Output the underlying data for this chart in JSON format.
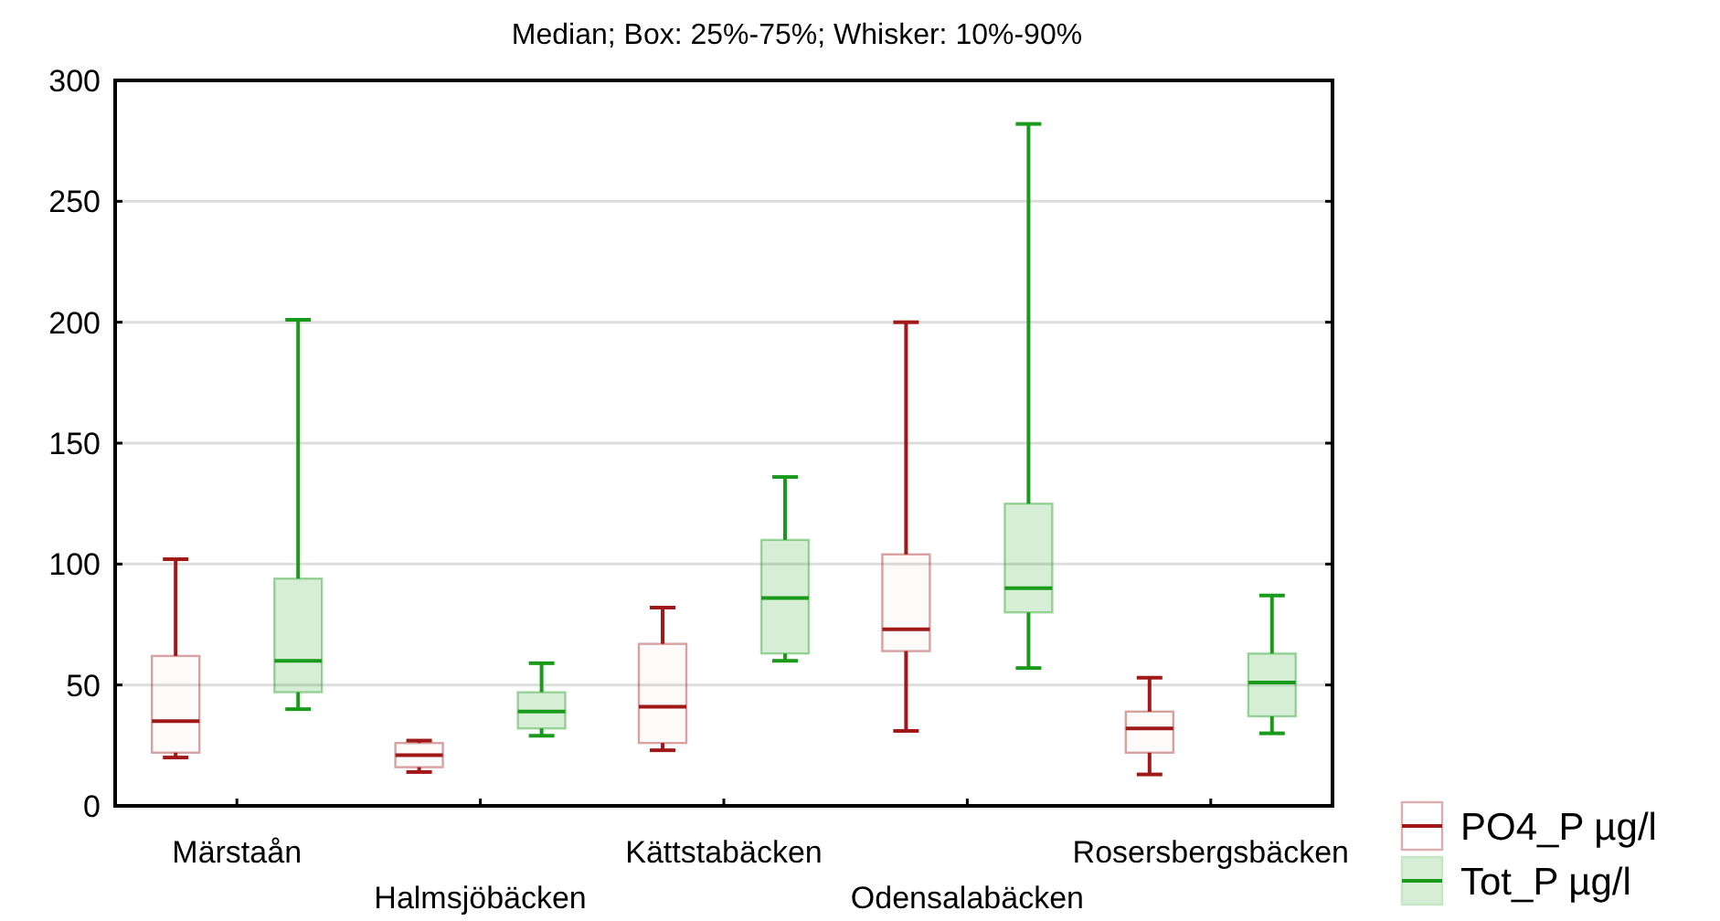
{
  "chart_data": {
    "type": "box",
    "title": "Median; Box: 25%-75%; Whisker: 10%-90%",
    "categories": [
      "Märstaån",
      "Halmsjöbäcken",
      "Kättstabäcken",
      "Odensalabäcken",
      "Rosersbergsbäcken"
    ],
    "ylim": [
      0,
      300
    ],
    "yticks": [
      0,
      50,
      100,
      150,
      200,
      250,
      300
    ],
    "grid": "y",
    "legend": "bottom right",
    "series": [
      {
        "name": "PO4_P µg/l",
        "color": "#a01818",
        "boxes": [
          {
            "low": 20,
            "q1": 22,
            "median": 35,
            "q3": 62,
            "high": 102
          },
          {
            "low": 14,
            "q1": 16,
            "median": 21,
            "q3": 26,
            "high": 27
          },
          {
            "low": 23,
            "q1": 26,
            "median": 41,
            "q3": 67,
            "high": 82
          },
          {
            "low": 31,
            "q1": 64,
            "median": 73,
            "q3": 104,
            "high": 200
          },
          {
            "low": 13,
            "q1": 22,
            "median": 32,
            "q3": 39,
            "high": 53
          }
        ]
      },
      {
        "name": "Tot_P µg/l",
        "color": "#1a9a1a",
        "boxes": [
          {
            "low": 40,
            "q1": 47,
            "median": 60,
            "q3": 94,
            "high": 201
          },
          {
            "low": 29,
            "q1": 32,
            "median": 39,
            "q3": 47,
            "high": 59
          },
          {
            "low": 60,
            "q1": 63,
            "median": 86,
            "q3": 110,
            "high": 136
          },
          {
            "low": 57,
            "q1": 80,
            "median": 90,
            "q3": 125,
            "high": 282
          },
          {
            "low": 30,
            "q1": 37,
            "median": 51,
            "q3": 63,
            "high": 87
          }
        ]
      }
    ]
  }
}
